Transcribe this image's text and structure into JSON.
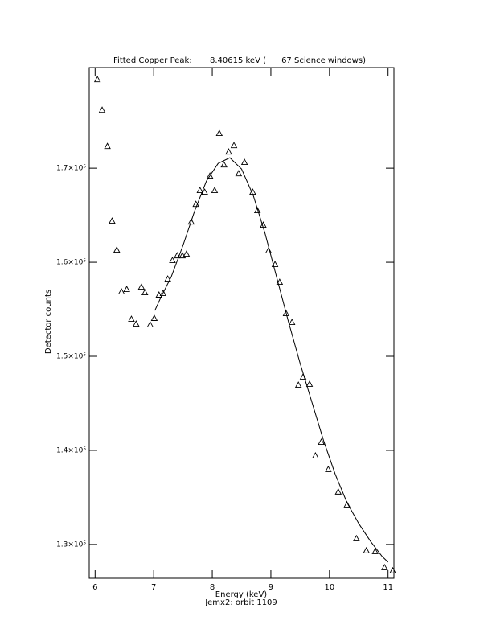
{
  "chart_data": {
    "type": "scatter",
    "title": "Fitted Copper Peak:       8.40615 keV (      67 Science windows)",
    "xlabel": "Energy (keV)",
    "subtitle": "Jemx2: orbit 1109",
    "ylabel": "Detector counts",
    "color": "#000000",
    "xlim": [
      5.9,
      11.1
    ],
    "ylim": [
      126400,
      180700
    ],
    "xticks": [
      6,
      7,
      8,
      9,
      10,
      11
    ],
    "yticks": [
      {
        "value": 130000,
        "label": "1.3×10⁵"
      },
      {
        "value": 140000,
        "label": "1.4×10⁵"
      },
      {
        "value": 150000,
        "label": "1.5×10⁵"
      },
      {
        "value": 160000,
        "label": "1.6×10⁵"
      },
      {
        "value": 170000,
        "label": "1.7×10⁵"
      }
    ],
    "points": {
      "x": [
        6.04,
        6.12,
        6.21,
        6.29,
        6.37,
        6.45,
        6.54,
        6.62,
        6.7,
        6.79,
        6.85,
        6.94,
        7.01,
        7.09,
        7.16,
        7.24,
        7.32,
        7.4,
        7.49,
        7.56,
        7.64,
        7.72,
        7.79,
        7.87,
        7.96,
        8.04,
        8.12,
        8.2,
        8.28,
        8.37,
        8.45,
        8.55,
        8.69,
        8.77,
        8.87,
        8.96,
        9.07,
        9.15,
        9.26,
        9.36,
        9.47,
        9.55,
        9.66,
        9.76,
        9.86,
        9.98,
        10.15,
        10.3,
        10.46,
        10.63,
        10.78,
        10.94,
        11.08
      ],
      "y": [
        179400,
        176150,
        172300,
        164360,
        161280,
        156840,
        157090,
        153930,
        153420,
        157350,
        156750,
        153330,
        154020,
        156500,
        156670,
        158200,
        160170,
        160680,
        160680,
        160850,
        164270,
        166150,
        167610,
        167440,
        169150,
        167610,
        173680,
        170340,
        171710,
        172390,
        169400,
        170600,
        167440,
        165470,
        163930,
        161200,
        159740,
        157860,
        154530,
        153590,
        146920,
        147780,
        147010,
        139400,
        140850,
        137950,
        135560,
        134190,
        130600,
        129320,
        129230,
        127520,
        127180
      ]
    },
    "fit": {
      "x": [
        7.02,
        7.12,
        7.3,
        7.5,
        7.7,
        7.9,
        8.1,
        8.3,
        8.5,
        8.7,
        8.9,
        9.1,
        9.3,
        9.5,
        9.7,
        9.9,
        10.1,
        10.3,
        10.5,
        10.7,
        10.9,
        11.0
      ],
      "y": [
        154870,
        156240,
        158460,
        161790,
        165470,
        168630,
        170510,
        171110,
        169910,
        167090,
        163080,
        158380,
        153680,
        149230,
        145130,
        141030,
        137440,
        134440,
        132220,
        130340,
        128720,
        128120
      ]
    }
  }
}
